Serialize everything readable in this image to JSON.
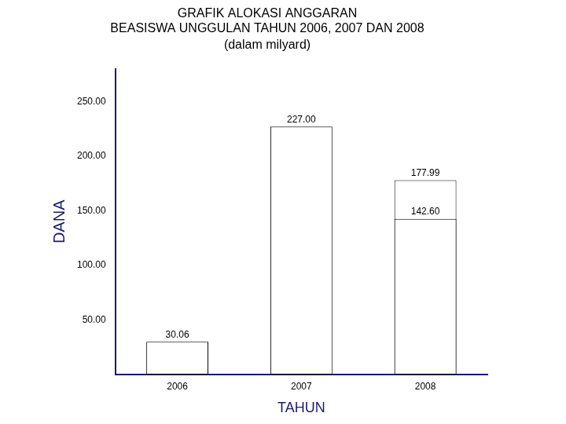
{
  "chart_data": {
    "type": "bar",
    "title": [
      "GRAFIK ALOKASI ANGGARAN",
      "BEASISWA UNGGULAN TAHUN 2006, 2007 DAN 2008"
    ],
    "subtitle": "(dalam milyard)",
    "x_label": "TAHUN",
    "y_label": "DANA",
    "categories": [
      "2006",
      "2007",
      "2008"
    ],
    "series": [
      {
        "color": "#ffffff",
        "values": [
          30.06,
          227.0,
          177.99
        ],
        "value_labels": [
          "30.06",
          "227.00",
          "177.99"
        ]
      },
      {
        "color": "#ffffff",
        "values": [
          null,
          null,
          142.6
        ],
        "value_labels": [
          null,
          null,
          "142.60"
        ]
      }
    ],
    "ylim": [
      0,
      280
    ],
    "yticks": [
      {
        "value": 50,
        "label": "50.00"
      },
      {
        "value": 100,
        "label": "100.00"
      },
      {
        "value": 150,
        "label": "150.00"
      },
      {
        "value": 200,
        "label": "200.00"
      },
      {
        "value": 250,
        "label": "250.00"
      }
    ],
    "grid": false,
    "data_labels": true
  }
}
